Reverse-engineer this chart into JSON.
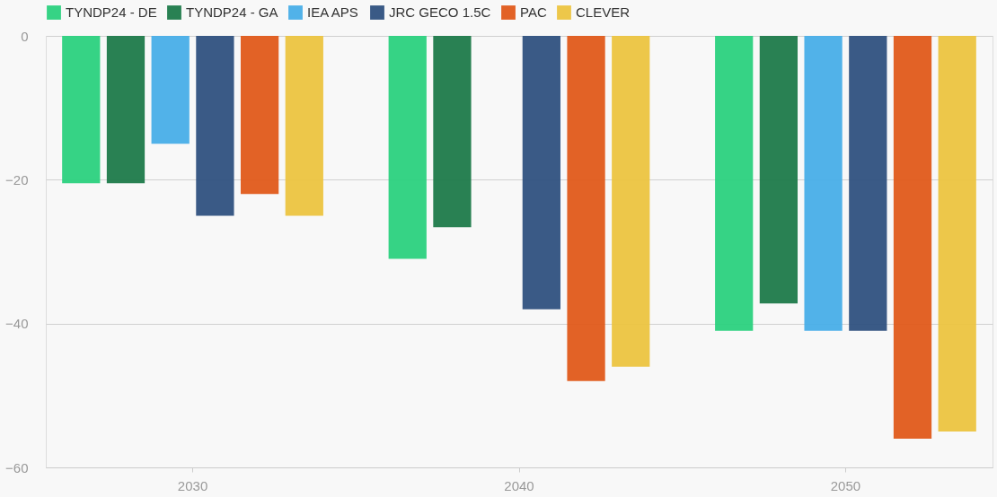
{
  "chart_data": {
    "type": "bar",
    "categories": [
      "2030",
      "2040",
      "2050"
    ],
    "series": [
      {
        "name": "TYNDP24 - DE",
        "color": "#2bd17e",
        "values": [
          -20.5,
          -31,
          -41
        ]
      },
      {
        "name": "TYNDP24 - GA",
        "color": "#1e7a4a",
        "values": [
          -20.5,
          -26.6,
          -37.2
        ]
      },
      {
        "name": "IEA APS",
        "color": "#48aee8",
        "values": [
          -15,
          null,
          -41
        ]
      },
      {
        "name": "JRC GECO 1.5C",
        "color": "#2f517f",
        "values": [
          -25,
          -38,
          -41
        ]
      },
      {
        "name": "PAC",
        "color": "#e05a1a",
        "values": [
          -22,
          -48,
          -56
        ]
      },
      {
        "name": "CLEVER",
        "color": "#ecc440",
        "values": [
          -25,
          -46,
          -55
        ]
      }
    ],
    "ylim": [
      -60,
      0
    ],
    "yticks": [
      -60,
      -40,
      -20,
      0
    ],
    "grid": "y",
    "legend": "top left"
  }
}
